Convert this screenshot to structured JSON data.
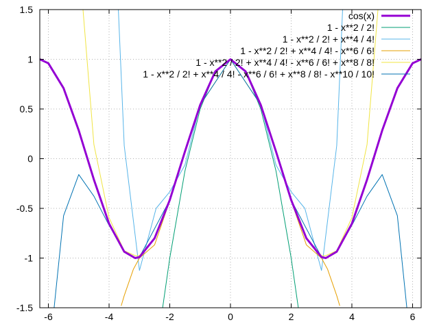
{
  "chart_data": {
    "type": "line",
    "title": "",
    "xlabel": "",
    "ylabel": "",
    "xlim": [
      -6.283185,
      6.283185
    ],
    "ylim": [
      -1.5,
      1.5
    ],
    "x_ticks": [
      -6,
      -4,
      -2,
      0,
      2,
      4,
      6
    ],
    "x_tick_labels": [
      "-6",
      "-4",
      "-2",
      "0",
      "2",
      "4",
      "6"
    ],
    "y_ticks": [
      -1.5,
      -1,
      -0.5,
      0,
      0.5,
      1,
      1.5
    ],
    "y_tick_labels": [
      "-1.5",
      "-1",
      "-0.5",
      "0",
      "0.5",
      "1",
      "1.5"
    ],
    "grid": true,
    "legend_position": "top-right",
    "series": [
      {
        "name": "cos(x)",
        "color": "#9400d3",
        "x": [
          -6.283,
          -6,
          -5.5,
          -5,
          -4.5,
          -4,
          -3.5,
          -3.142,
          -3,
          -2.5,
          -2,
          -1.5,
          -1,
          -0.5,
          0,
          0.5,
          1,
          1.5,
          2,
          2.5,
          3,
          3.142,
          3.5,
          4,
          4.5,
          5,
          5.5,
          6,
          6.283
        ],
        "y": [
          1.0,
          0.96,
          0.709,
          0.284,
          -0.211,
          -0.654,
          -0.936,
          -1.0,
          -0.99,
          -0.801,
          -0.416,
          0.071,
          0.54,
          0.878,
          1.0,
          0.878,
          0.54,
          0.071,
          -0.416,
          -0.801,
          -0.99,
          -1.0,
          -0.936,
          -0.654,
          -0.211,
          0.284,
          0.709,
          0.96,
          1.0
        ]
      },
      {
        "name": "1 - x**2 / 2!",
        "color": "#009e73",
        "x": [
          -2.236,
          -2,
          -1.5,
          -1,
          -0.5,
          0,
          0.5,
          1,
          1.5,
          2,
          2.236
        ],
        "y": [
          -1.5,
          -1.0,
          -0.125,
          0.5,
          0.875,
          1.0,
          0.875,
          0.5,
          -0.125,
          -1.0,
          -1.5
        ]
      },
      {
        "name": "1 - x**2 / 2! + x**4 / 4!",
        "color": "#56b4e9",
        "x": [
          -4.1,
          -4,
          -3.5,
          -3,
          -2.449,
          -2,
          -1.5,
          -1,
          -0.5,
          0,
          0.5,
          1,
          1.5,
          2,
          2.449,
          3,
          3.5,
          4,
          4.1
        ],
        "y": [
          1.59,
          3.667,
          0.131,
          -1.125,
          -0.5,
          -0.333,
          -0.064,
          0.542,
          0.878,
          1.0,
          0.878,
          0.542,
          -0.064,
          -0.333,
          -0.5,
          -1.125,
          0.131,
          3.667,
          1.59
        ]
      },
      {
        "name": "1 - x**2 / 2! + x**4 / 4! - x**6 / 6!",
        "color": "#e69f00",
        "x": [
          -3.6,
          -3.5,
          -3.2,
          -3,
          -2.5,
          -2,
          -1.5,
          -1,
          -0.5,
          0,
          0.5,
          1,
          1.5,
          2,
          2.5,
          3,
          3.2,
          3.5,
          3.6
        ],
        "y": [
          -1.48,
          -1.378,
          -1.113,
          -1.0,
          -0.867,
          -0.422,
          0.071,
          0.54,
          0.878,
          1.0,
          0.878,
          0.54,
          0.071,
          -0.422,
          -0.867,
          -1.0,
          -1.113,
          -1.378,
          -1.48
        ]
      },
      {
        "name": "1 - x**2 / 2! + x**4 / 4! - x**6 / 6! + x**8 / 8!",
        "color": "#f0e442",
        "x": [
          -4.86,
          -4.5,
          -4,
          -3.5,
          -3.142,
          -3,
          -2.5,
          -2,
          -1,
          0,
          1,
          2,
          2.5,
          3,
          3.142,
          3.5,
          4,
          4.5,
          4.86
        ],
        "y": [
          1.5,
          0.142,
          -0.594,
          -0.926,
          -0.976,
          -0.976,
          -0.797,
          -0.416,
          0.54,
          1.0,
          0.54,
          -0.416,
          -0.797,
          -0.976,
          -0.976,
          -0.926,
          -0.594,
          0.142,
          1.5
        ]
      },
      {
        "name": "1 - x**2 / 2! + x**4 / 4! - x**6 / 6! + x**8 / 8! - x**10 / 10!",
        "color": "#0072b2",
        "x": [
          -5.81,
          -5.5,
          -5,
          -4.5,
          -4,
          -3.5,
          -3.142,
          -3,
          -2,
          -1,
          0,
          1,
          2,
          3,
          3.142,
          3.5,
          4,
          4.5,
          5,
          5.5,
          5.81
        ],
        "y": [
          -1.5,
          -0.574,
          -0.16,
          -0.377,
          -0.671,
          -0.938,
          -1.0,
          -0.99,
          -0.416,
          0.54,
          1.0,
          0.54,
          -0.416,
          -0.99,
          -1.0,
          -0.938,
          -0.671,
          -0.377,
          -0.16,
          -0.574,
          -1.5
        ]
      }
    ]
  }
}
